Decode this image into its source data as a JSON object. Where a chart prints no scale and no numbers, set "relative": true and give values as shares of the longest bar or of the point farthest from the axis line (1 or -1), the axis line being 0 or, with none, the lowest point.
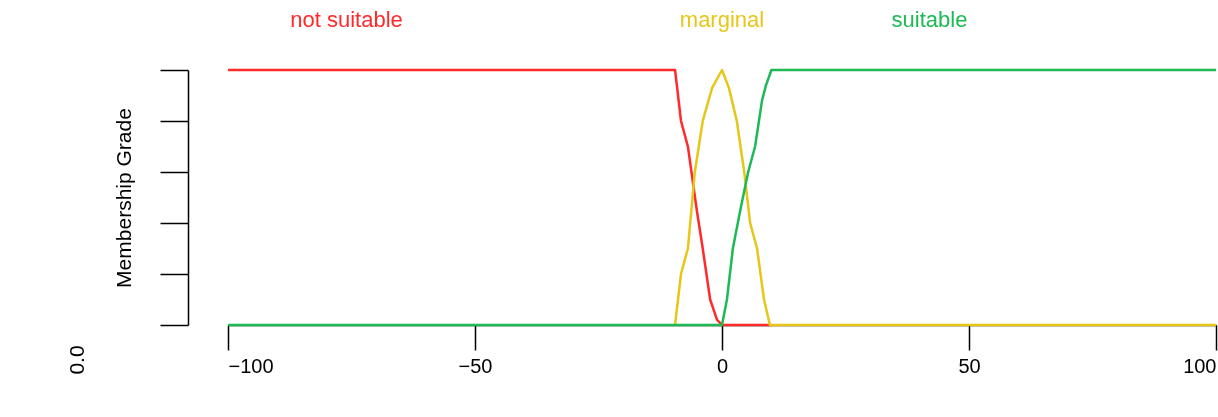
{
  "chart_data": {
    "type": "line",
    "ylabel": "Membership Grade",
    "relative": true,
    "legend": "top",
    "xlim": [
      -100,
      100
    ],
    "xticks": [
      -100,
      -50,
      0,
      50,
      100
    ],
    "grid": false,
    "marker": "none",
    "line_style": "solid",
    "annotations": [
      "0.0"
    ],
    "series": [
      {
        "name": "not suitable",
        "color": "#ff2a2a",
        "x": [
          -100,
          -9.5,
          -8.3,
          -6.9,
          -5.1,
          -3.9,
          -2.4,
          -1,
          0,
          10
        ],
        "values": [
          1,
          1,
          0.8,
          0.7,
          0.45,
          0.3,
          0.1,
          0.02,
          0,
          0
        ]
      },
      {
        "name": "marginal",
        "color": "#e6c619",
        "x": [
          -9.5,
          -8.3,
          -6.9,
          -5.5,
          -3.9,
          -2,
          0,
          1.4,
          3,
          4.5,
          5.7,
          7.1,
          8.5,
          9.7,
          100
        ],
        "values": [
          0,
          0.2,
          0.3,
          0.6,
          0.8,
          0.93,
          1,
          0.93,
          0.8,
          0.6,
          0.4,
          0.3,
          0.1,
          0,
          0
        ]
      },
      {
        "name": "suitable",
        "color": "#1db954",
        "x": [
          -100,
          0,
          1,
          2.2,
          3.7,
          5.3,
          6.7,
          8.1,
          8.9,
          10,
          100
        ],
        "values": [
          0,
          0,
          0.1,
          0.3,
          0.45,
          0.6,
          0.7,
          0.88,
          0.94,
          1,
          1
        ]
      }
    ]
  }
}
